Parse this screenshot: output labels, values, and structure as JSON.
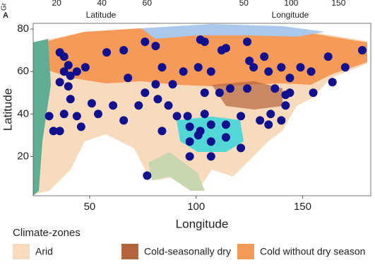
{
  "chart_data": {
    "type": "scatter",
    "panel_label": "A",
    "x_label": "Longitude",
    "y_label": "Latitude",
    "xlim": [
      23.5,
      182
    ],
    "ylim": [
      1.5,
      82.7
    ],
    "xticks": [
      50,
      100,
      150
    ],
    "yticks": [
      20,
      40,
      60,
      80
    ],
    "color": "#11118f",
    "x": [
      36,
      38,
      40,
      38,
      41,
      36,
      40,
      44,
      48,
      58,
      66,
      76,
      81,
      68,
      76,
      81,
      84,
      89,
      94,
      101,
      107,
      104,
      102,
      112,
      114,
      124,
      125,
      127,
      132,
      134,
      140,
      144,
      149,
      154,
      162,
      170,
      178,
      164,
      155,
      144,
      142,
      135,
      130,
      121,
      114,
      107,
      104,
      97,
      96,
      87,
      82,
      73,
      66,
      61,
      54,
      46,
      44,
      38,
      31,
      33,
      36,
      97,
      101,
      107,
      114,
      121,
      97,
      107,
      102,
      84,
      77,
      134,
      140,
      116,
      124,
      111,
      104,
      137,
      142,
      91,
      51,
      41
    ],
    "values": [
      69,
      67,
      63,
      60,
      58,
      55,
      53,
      60,
      62,
      69,
      70,
      74,
      72,
      57,
      50,
      54,
      62,
      54,
      60,
      62,
      60,
      74,
      75,
      70,
      71,
      74,
      65,
      62,
      67,
      60,
      62,
      57,
      62,
      60,
      67,
      62,
      70,
      55,
      50,
      50,
      44,
      40,
      37,
      39,
      35,
      35,
      40,
      34,
      39,
      44,
      47,
      44,
      37,
      44,
      40,
      34,
      39,
      40,
      39,
      32,
      32,
      27,
      30,
      27,
      29,
      24,
      20,
      20,
      32,
      32,
      11,
      35,
      37,
      52,
      52,
      50,
      50,
      52,
      49,
      39,
      45,
      47
    ],
    "legend": {
      "title": "Climate-zones",
      "entries": [
        {
          "label": "Arid",
          "color": "#f8dbbd"
        },
        {
          "label": "Cold-seasonally dry",
          "color": "#b5643e"
        },
        {
          "label": "Cold without dry season",
          "color": "#f69a5a"
        }
      ]
    }
  },
  "top_strip": {
    "cut_label": "Gr",
    "left": {
      "label": "Latitude",
      "xlim": [
        -5,
        73
      ],
      "ticks": [
        20,
        40,
        60
      ]
    },
    "right": {
      "label": "Longitude",
      "xlim": [
        -21,
        184
      ],
      "ticks": [
        50,
        100,
        150
      ]
    }
  }
}
